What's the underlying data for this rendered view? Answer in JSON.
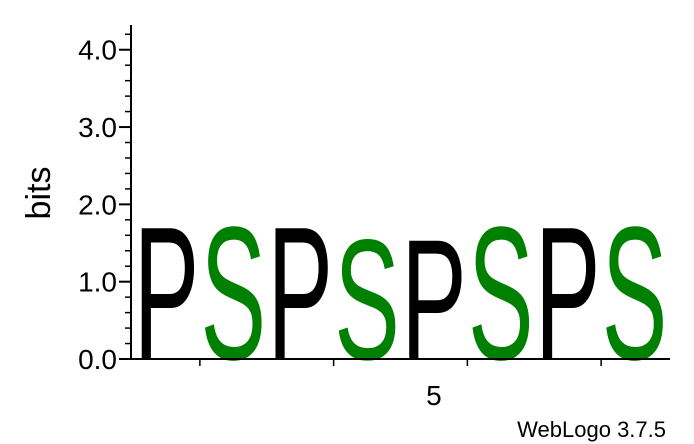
{
  "chart_data": {
    "type": "sequence-logo",
    "ylabel": "bits",
    "ylim": [
      0,
      4.32
    ],
    "y_ticks": [
      "0.0",
      "1.0",
      "2.0",
      "3.0",
      "4.0"
    ],
    "y_tick_values": [
      0,
      1,
      2,
      3,
      4
    ],
    "x_tick_labels": [
      {
        "position": 5,
        "label": "5"
      }
    ],
    "num_positions": 8,
    "positions": [
      {
        "position": 1,
        "letter": "P",
        "height": 1.77,
        "color": "#000000"
      },
      {
        "position": 2,
        "letter": "S",
        "height": 1.77,
        "color": "#008000"
      },
      {
        "position": 3,
        "letter": "P",
        "height": 1.77,
        "color": "#000000"
      },
      {
        "position": 4,
        "letter": "S",
        "height": 1.6,
        "color": "#008000"
      },
      {
        "position": 5,
        "letter": "P",
        "height": 1.6,
        "color": "#000000"
      },
      {
        "position": 6,
        "letter": "S",
        "height": 1.77,
        "color": "#008000"
      },
      {
        "position": 7,
        "letter": "P",
        "height": 1.77,
        "color": "#000000"
      },
      {
        "position": 8,
        "letter": "S",
        "height": 1.77,
        "color": "#008000"
      }
    ],
    "footer": "WebLogo 3.7.5"
  }
}
